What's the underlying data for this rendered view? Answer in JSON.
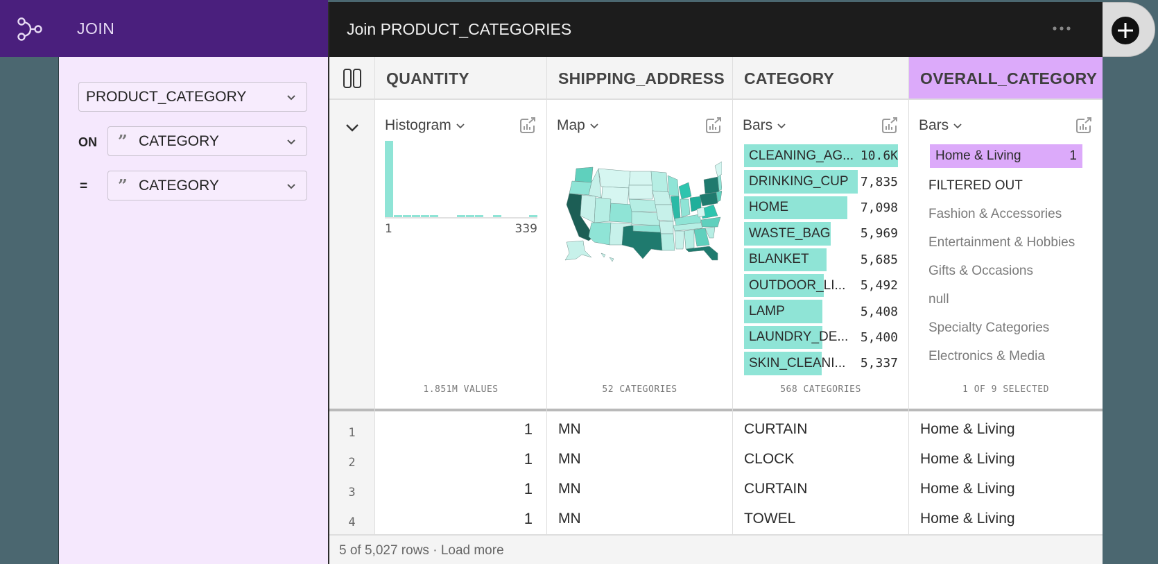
{
  "join_panel": {
    "title": "JOIN",
    "icon": "join-branch-icon",
    "table_select": {
      "value": "PRODUCT_CATEGORY"
    },
    "on_label": "ON",
    "on_select": {
      "value": "CATEGORY",
      "type_icon": "string-quote-icon"
    },
    "eq_label": "=",
    "eq_select": {
      "value": "CATEGORY",
      "type_icon": "string-quote-icon"
    }
  },
  "main": {
    "title": "Join PRODUCT_CATEGORIES",
    "more_icon": "ellipsis-icon",
    "add_icon": "plus-circle-icon",
    "columns": [
      {
        "name": "QUANTITY",
        "viz": "Histogram",
        "footer": "1.851M VALUES"
      },
      {
        "name": "SHIPPING_ADDRESS",
        "viz": "Map",
        "footer": "52 CATEGORIES"
      },
      {
        "name": "CATEGORY",
        "viz": "Bars",
        "footer": "568 CATEGORIES"
      },
      {
        "name": "OVERALL_CATEGORY",
        "viz": "Bars",
        "footer": "1 OF 9 SELECTED",
        "selected": true
      }
    ],
    "rows": [
      {
        "idx": "1",
        "quantity": "1",
        "shipping_address": "MN",
        "category": "CURTAIN",
        "overall_category": "Home & Living"
      },
      {
        "idx": "2",
        "quantity": "1",
        "shipping_address": "MN",
        "category": "CLOCK",
        "overall_category": "Home & Living"
      },
      {
        "idx": "3",
        "quantity": "1",
        "shipping_address": "MN",
        "category": "CURTAIN",
        "overall_category": "Home & Living"
      },
      {
        "idx": "4",
        "quantity": "1",
        "shipping_address": "MN",
        "category": "TOWEL",
        "overall_category": "Home & Living"
      }
    ],
    "footer": {
      "count_text": "5 of 5,027 rows",
      "separator": " · ",
      "load_more": "Load more"
    }
  },
  "chart_data": [
    {
      "type": "bar",
      "title": "QUANTITY Histogram",
      "xlabel": "",
      "ylabel": "",
      "x_range": [
        1,
        339
      ],
      "tick_labels": [
        "1",
        "339"
      ],
      "bins": 17,
      "values": [
        100,
        3,
        3,
        3,
        3,
        3,
        0,
        0,
        3,
        3,
        3,
        0,
        3,
        0,
        0,
        0,
        3
      ],
      "footer": "1.851M VALUES"
    },
    {
      "type": "heatmap",
      "title": "SHIPPING_ADDRESS Map",
      "description": "US choropleth; darkest: CA, TX, FL, PA, NY",
      "footer": "52 CATEGORIES"
    },
    {
      "type": "bar",
      "title": "CATEGORY Bars",
      "categories": [
        "CLEANING_AG...",
        "DRINKING_CUP",
        "HOME",
        "WASTE_BAG",
        "BLANKET",
        "OUTDOOR_LI...",
        "LAMP",
        "LAUNDRY_DE...",
        "SKIN_CLEANI..."
      ],
      "values": [
        10600,
        7835,
        7098,
        5969,
        5685,
        5492,
        5408,
        5400,
        5337
      ],
      "value_labels": [
        "10.6K",
        "7,835",
        "7,098",
        "5,969",
        "5,685",
        "5,492",
        "5,408",
        "5,400",
        "5,337"
      ],
      "footer": "568 CATEGORIES"
    },
    {
      "type": "bar",
      "title": "OVERALL_CATEGORY Bars",
      "categories": [
        "Home & Living"
      ],
      "values": [
        1
      ],
      "selected": "Home & Living",
      "filtered_out_label": "FILTERED OUT",
      "filtered_out": [
        "Fashion & Accessories",
        "Entertainment & Hobbies",
        "Gifts & Occasions",
        "null",
        "Specialty Categories",
        "Electronics & Media"
      ],
      "footer": "1 OF 9 SELECTED"
    }
  ],
  "colors": {
    "join_header": "#4a1f7d",
    "join_body": "#f5e8fd",
    "topbar": "#1c1c1c",
    "selected_column": "#dcaafa",
    "bar_fill": "#8fe4d6",
    "background": "#4b6770"
  }
}
